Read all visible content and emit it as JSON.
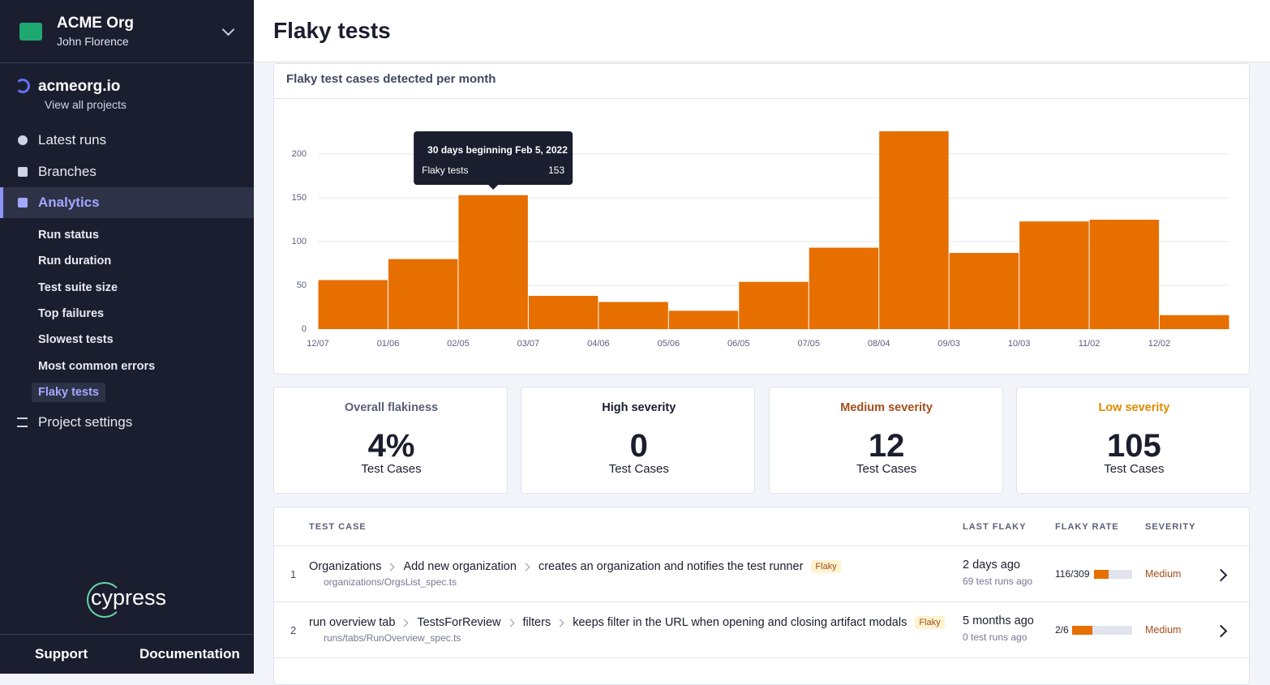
{
  "sidebar": {
    "org": "ACME Org",
    "user": "John Florence",
    "project": "acmeorg.io",
    "back": "View all projects",
    "nav": [
      "Latest runs",
      "Branches",
      "Analytics"
    ],
    "active": 2,
    "subnav": [
      "Run status",
      "Run duration",
      "Test suite size",
      "Top failures",
      "Slowest tests",
      "Most common errors",
      "Flaky tests"
    ],
    "sub_active": 6,
    "settings": "Project settings",
    "logo": "cypress",
    "footer": [
      "Support",
      "Documentation"
    ]
  },
  "header": {
    "title": "Flaky tests"
  },
  "chart_data": {
    "type": "bar",
    "title": "Flaky test cases detected per month",
    "categories": [
      "12/07",
      "01/06",
      "02/05",
      "03/07",
      "04/06",
      "05/06",
      "06/05",
      "07/05",
      "08/04",
      "09/03",
      "10/03",
      "11/02",
      "12/02"
    ],
    "values": [
      56,
      80,
      153,
      38,
      31,
      21,
      54,
      93,
      226,
      87,
      123,
      125,
      16
    ],
    "color": "#e66f00",
    "ylim": [
      0,
      230
    ],
    "yticks": [
      0,
      50,
      100,
      150,
      200
    ],
    "grid": true,
    "tooltip": {
      "title": "30 days beginning Feb 5, 2022",
      "label": "Flaky tests",
      "value": 153,
      "index": 2
    }
  },
  "stats": [
    {
      "label": "Overall flakiness",
      "value": "4%",
      "unit": "Test Cases"
    },
    {
      "label": "High severity",
      "value": "0",
      "unit": "Test Cases"
    },
    {
      "label": "Medium severity",
      "value": "12",
      "unit": "Test Cases"
    },
    {
      "label": "Low severity",
      "value": "105",
      "unit": "Test Cases"
    }
  ],
  "table": {
    "headers": [
      "TEST CASE",
      "LAST FLAKY",
      "FLAKY RATE",
      "SEVERITY"
    ],
    "rows": [
      {
        "index": 1,
        "path": [
          "Organizations",
          "Add new organization",
          "creates an organization and notifies the test runner"
        ],
        "tag": "Flaky",
        "file": "organizations/OrgsList_spec.ts",
        "last": "2 days ago",
        "runs": "69 test runs ago",
        "rate": "116/309",
        "flaky": 116,
        "total": 309,
        "severity": "Medium"
      },
      {
        "index": 2,
        "path": [
          "run overview tab",
          "TestsForReview",
          "filters",
          "keeps filter in the URL when opening and closing artifact modals"
        ],
        "tag": "Flaky",
        "file": "runs/tabs/RunOverview_spec.ts",
        "last": "5 months ago",
        "runs": "0 test runs ago",
        "rate": "2/6",
        "flaky": 2,
        "total": 6,
        "severity": "Medium"
      }
    ]
  }
}
